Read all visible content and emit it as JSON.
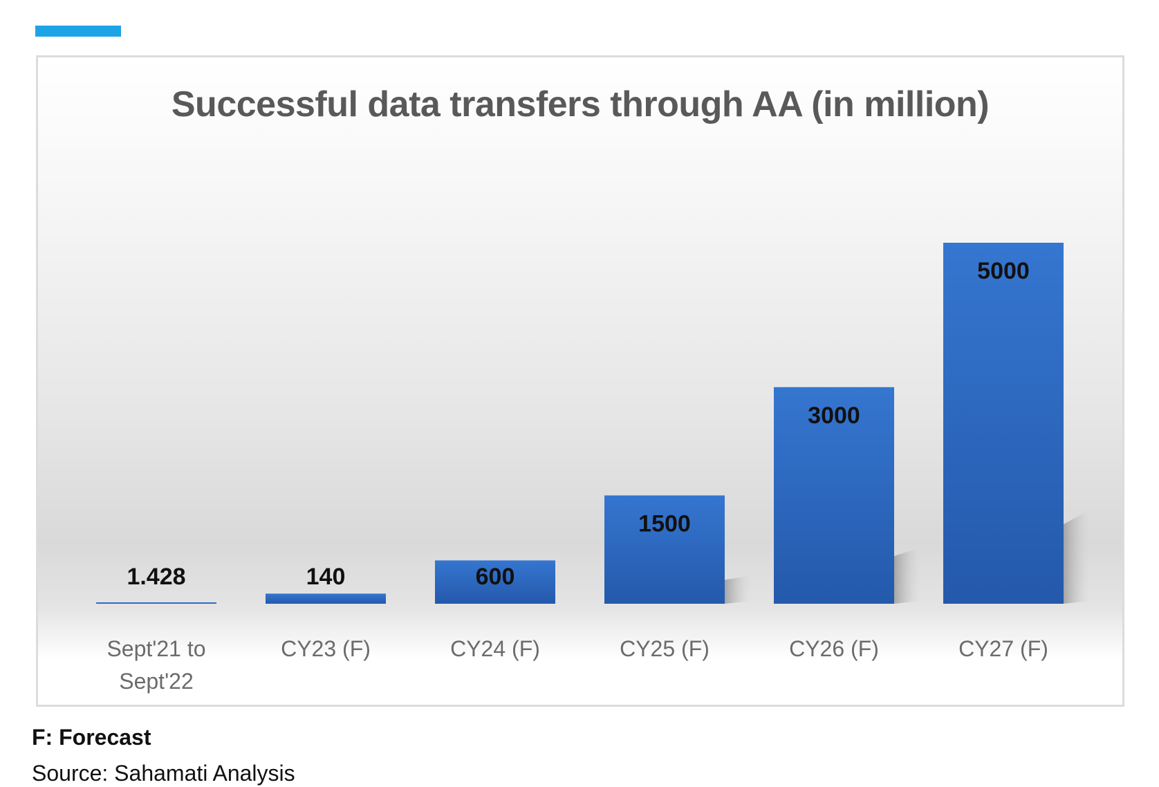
{
  "accent_color": "#1ea4e6",
  "bar_color": "#2d6cc4",
  "chart_data": {
    "type": "bar",
    "title": "Successful data transfers through AA (in million)",
    "categories": [
      [
        "Sept'21 to",
        "Sept'22"
      ],
      [
        "CY23 (F)"
      ],
      [
        "CY24 (F)"
      ],
      [
        "CY25 (F)"
      ],
      [
        "CY26 (F)"
      ],
      [
        "CY27 (F)"
      ]
    ],
    "values": [
      1.428,
      140,
      600,
      1500,
      3000,
      5000
    ],
    "value_labels": [
      "1.428",
      "140",
      "600",
      "1500",
      "3000",
      "5000"
    ],
    "xlabel": "",
    "ylabel": "",
    "ylim": [
      0,
      5000
    ],
    "grid": false,
    "legend": "none"
  },
  "footnotes": {
    "legend_note": "F: Forecast",
    "source": "Source: Sahamati Analysis"
  }
}
